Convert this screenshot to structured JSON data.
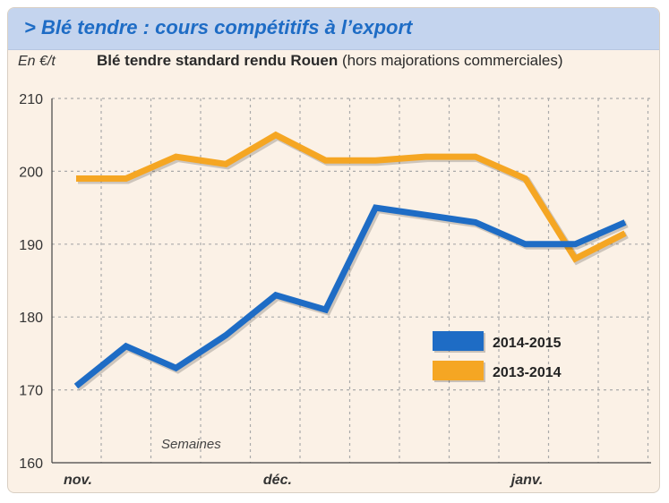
{
  "header": {
    "title": "> Blé tendre : cours compétitifs à l’export"
  },
  "unit": "En €/t",
  "subtitle": {
    "main": "Blé tendre standard rendu Rouen",
    "note": "(hors majorations commerciales)"
  },
  "chart_data": {
    "type": "line",
    "x": [
      0,
      1,
      2,
      3,
      4,
      5,
      6,
      7,
      8,
      9,
      10,
      11
    ],
    "x_tick_labels": [
      {
        "x": 0,
        "label": "nov."
      },
      {
        "x": 4,
        "label": "déc."
      },
      {
        "x": 9,
        "label": "janv."
      }
    ],
    "x_note": "Semaines",
    "ylim": [
      160,
      210
    ],
    "yticks": [
      160,
      170,
      180,
      190,
      200,
      210
    ],
    "grid": true,
    "legend_position": "bottom-right",
    "series": [
      {
        "name": "2014-2015",
        "color": "#1e6cc5",
        "values": [
          170.5,
          176,
          173,
          177.5,
          183,
          181,
          195,
          194,
          193,
          190,
          190,
          193
        ]
      },
      {
        "name": "2013-2014",
        "color": "#f5a623",
        "values": [
          199,
          199,
          202,
          201,
          205,
          201.5,
          201.5,
          202,
          202,
          199,
          188,
          191.5
        ]
      }
    ]
  }
}
